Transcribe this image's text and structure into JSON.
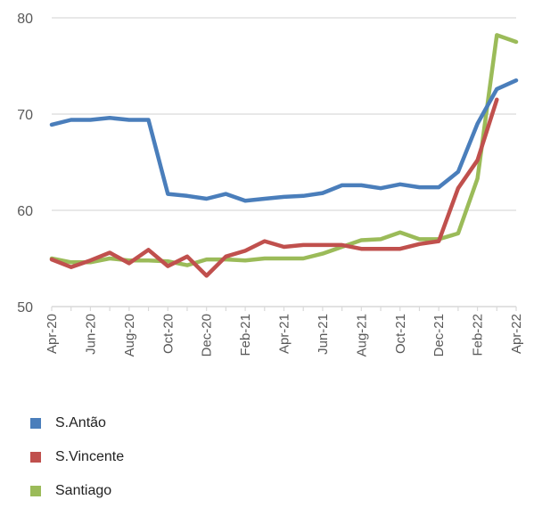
{
  "chart_data": {
    "type": "line",
    "x": [
      "Apr-20",
      "May-20",
      "Jun-20",
      "Jul-20",
      "Aug-20",
      "Sep-20",
      "Oct-20",
      "Nov-20",
      "Dec-20",
      "Jan-21",
      "Feb-21",
      "Mar-21",
      "Apr-21",
      "May-21",
      "Jun-21",
      "Jul-21",
      "Aug-21",
      "Sep-21",
      "Oct-21",
      "Nov-21",
      "Dec-21",
      "Jan-22",
      "Feb-22",
      "Mar-22",
      "Apr-22"
    ],
    "tick_labels": [
      "Apr-20",
      "Jun-20",
      "Aug-20",
      "Oct-20",
      "Dec-20",
      "Feb-21",
      "Apr-21",
      "Jun-21",
      "Aug-21",
      "Oct-21",
      "Dec-21",
      "Feb-22",
      "Apr-22"
    ],
    "y_ticks": [
      50,
      60,
      70,
      80
    ],
    "ylim": [
      50,
      80
    ],
    "grid": true,
    "legend_position": "bottom-left",
    "series": [
      {
        "name": "S.Antão",
        "color": "#4a7ebb",
        "values": [
          68.9,
          69.4,
          69.4,
          69.6,
          69.4,
          69.4,
          61.7,
          61.5,
          61.2,
          61.7,
          61.0,
          61.2,
          61.4,
          61.5,
          61.8,
          62.6,
          62.6,
          62.3,
          62.7,
          62.4,
          62.4,
          64.0,
          69.0,
          72.6,
          73.5
        ]
      },
      {
        "name": "S.Vincente",
        "color": "#c0504d",
        "values": [
          54.9,
          54.1,
          54.8,
          55.6,
          54.5,
          55.9,
          54.2,
          55.2,
          53.2,
          55.2,
          55.8,
          56.8,
          56.2,
          56.4,
          56.4,
          56.4,
          56.0,
          56.0,
          56.0,
          56.5,
          56.8,
          62.3,
          65.2,
          71.5,
          null
        ]
      },
      {
        "name": "Santiago",
        "color": "#9bbb59",
        "values": [
          55.0,
          54.6,
          54.6,
          55.0,
          54.8,
          54.8,
          54.7,
          54.3,
          54.9,
          54.9,
          54.8,
          55.0,
          55.0,
          55.0,
          55.5,
          56.2,
          56.9,
          57.0,
          57.7,
          57.0,
          57.0,
          57.6,
          63.3,
          78.2,
          77.5
        ]
      }
    ]
  }
}
